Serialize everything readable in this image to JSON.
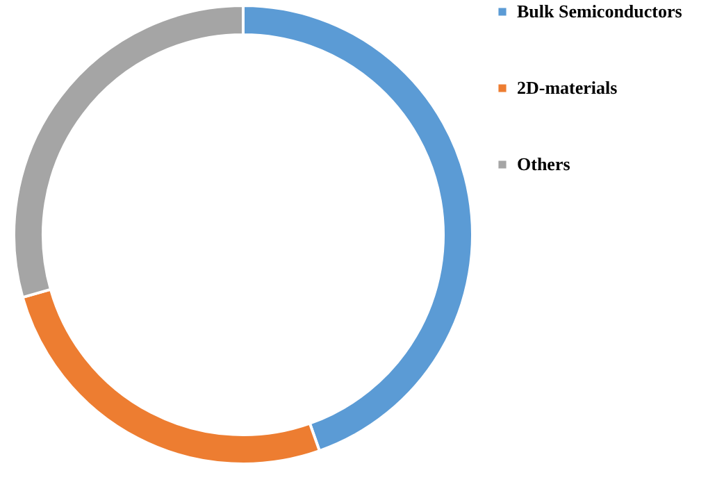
{
  "chart_data": {
    "type": "donut",
    "categories": [
      "Bulk Semiconductors",
      "2D-materials",
      "Others"
    ],
    "values": [
      44.6,
      26,
      29.4
    ],
    "colors": [
      "#5b9bd5",
      "#ed7d31",
      "#a5a5a5"
    ],
    "legend": "right"
  }
}
